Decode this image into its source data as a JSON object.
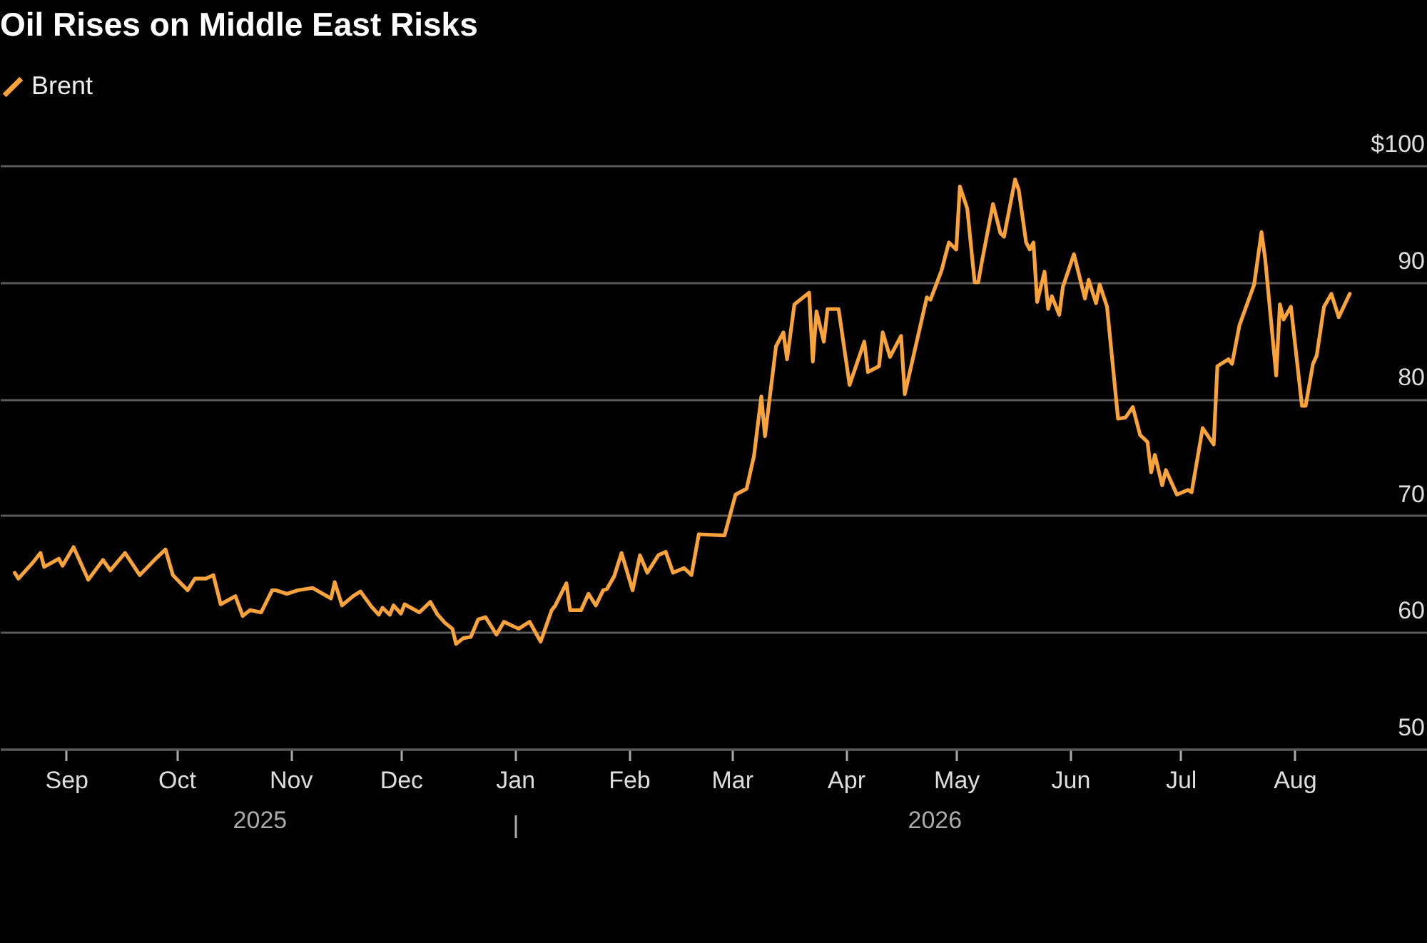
{
  "chart_data": {
    "type": "line",
    "title": "Oil Rises on Middle East Risks",
    "legend": "top left",
    "grid": "y",
    "annotations": [
      "2025",
      "2026"
    ],
    "ylim": [
      50,
      100
    ],
    "yticks": [
      {
        "value": 100,
        "label": "$100"
      },
      90,
      80,
      70,
      60,
      50
    ],
    "xlim": [
      "2025-08-14",
      "2026-09-06"
    ],
    "xticks": [
      {
        "value": "2025-09-01",
        "label": "Sep"
      },
      {
        "value": "2025-10-01",
        "label": "Oct"
      },
      {
        "value": "2025-11-01",
        "label": "Nov"
      },
      {
        "value": "2025-12-01",
        "label": "Dec"
      },
      {
        "value": "2026-01-01",
        "label": "Jan"
      },
      {
        "value": "2026-02-01",
        "label": "Feb"
      },
      {
        "value": "2026-03-01",
        "label": "Mar"
      },
      {
        "value": "2026-04-01",
        "label": "Apr"
      },
      {
        "value": "2026-05-01",
        "label": "May"
      },
      {
        "value": "2026-06-01",
        "label": "Jun"
      },
      {
        "value": "2026-07-01",
        "label": "Jul"
      },
      {
        "value": "2026-08-01",
        "label": "Aug"
      }
    ],
    "x": [
      "2025-08-18",
      "2025-08-19",
      "2025-08-23",
      "2025-08-25",
      "2025-08-26",
      "2025-08-30",
      "2025-08-31",
      "2025-09-03",
      "2025-09-07",
      "2025-09-11",
      "2025-09-13",
      "2025-09-17",
      "2025-09-21",
      "2025-09-25",
      "2025-09-28",
      "2025-09-30",
      "2025-10-04",
      "2025-10-06",
      "2025-10-09",
      "2025-10-11",
      "2025-10-13",
      "2025-10-17",
      "2025-10-19",
      "2025-10-21",
      "2025-10-24",
      "2025-10-27",
      "2025-10-28",
      "2025-10-31",
      "2025-11-03",
      "2025-11-07",
      "2025-11-12",
      "2025-11-13",
      "2025-11-15",
      "2025-11-18",
      "2025-11-20",
      "2025-11-23",
      "2025-11-25",
      "2025-11-26",
      "2025-11-28",
      "2025-11-29",
      "2025-12-01",
      "2025-12-02",
      "2025-12-06",
      "2025-12-09",
      "2025-12-11",
      "2025-12-13",
      "2025-12-15",
      "2025-12-16",
      "2025-12-18",
      "2025-12-20",
      "2025-12-22",
      "2025-12-24",
      "2025-12-27",
      "2025-12-29",
      "2026-01-02",
      "2026-01-05",
      "2026-01-08",
      "2026-01-11",
      "2026-01-12",
      "2026-01-15",
      "2026-01-16",
      "2026-01-19",
      "2026-01-21",
      "2026-01-23",
      "2026-01-25",
      "2026-01-26",
      "2026-01-28",
      "2026-01-30",
      "2026-02-02",
      "2026-02-04",
      "2026-02-06",
      "2026-02-09",
      "2026-02-11",
      "2026-02-13",
      "2026-02-16",
      "2026-02-18",
      "2026-02-20",
      "2026-02-27",
      "2026-03-02",
      "2026-03-05",
      "2026-03-07",
      "2026-03-09",
      "2026-03-10",
      "2026-03-13",
      "2026-03-15",
      "2026-03-16",
      "2026-03-18",
      "2026-03-22",
      "2026-03-23",
      "2026-03-24",
      "2026-03-26",
      "2026-03-27",
      "2026-03-30",
      "2026-04-02",
      "2026-04-06",
      "2026-04-07",
      "2026-04-10",
      "2026-04-11",
      "2026-04-13",
      "2026-04-16",
      "2026-04-17",
      "2026-04-23",
      "2026-04-24",
      "2026-04-27",
      "2026-04-29",
      "2026-05-01",
      "2026-05-02",
      "2026-05-04",
      "2026-05-06",
      "2026-05-07",
      "2026-05-08",
      "2026-05-11",
      "2026-05-13",
      "2026-05-14",
      "2026-05-17",
      "2026-05-18",
      "2026-05-20",
      "2026-05-21",
      "2026-05-22",
      "2026-05-23",
      "2026-05-25",
      "2026-05-26",
      "2026-05-27",
      "2026-05-29",
      "2026-05-30",
      "2026-06-02",
      "2026-06-05",
      "2026-06-06",
      "2026-06-08",
      "2026-06-09",
      "2026-06-11",
      "2026-06-14",
      "2026-06-16",
      "2026-06-18",
      "2026-06-20",
      "2026-06-22",
      "2026-06-23",
      "2026-06-24",
      "2026-06-26",
      "2026-06-27",
      "2026-06-30",
      "2026-07-03",
      "2026-07-04",
      "2026-07-07",
      "2026-07-10",
      "2026-07-11",
      "2026-07-14",
      "2026-07-15",
      "2026-07-17",
      "2026-07-21",
      "2026-07-23",
      "2026-07-24",
      "2026-07-27",
      "2026-07-28",
      "2026-07-29",
      "2026-07-31",
      "2026-08-03",
      "2026-08-04",
      "2026-08-06",
      "2026-08-07",
      "2026-08-09",
      "2026-08-11",
      "2026-08-13",
      "2026-08-16"
    ],
    "series": [
      {
        "name": "Brent",
        "color": "#f9a33a",
        "values": [
          65.1,
          64.6,
          66.0,
          66.8,
          65.6,
          66.3,
          65.7,
          67.3,
          64.5,
          66.2,
          65.3,
          66.8,
          64.9,
          66.2,
          67.1,
          64.9,
          63.6,
          64.6,
          64.6,
          64.9,
          62.4,
          63.1,
          61.4,
          61.9,
          61.7,
          63.6,
          63.6,
          63.3,
          63.6,
          63.8,
          62.9,
          64.3,
          62.3,
          63.1,
          63.5,
          62.2,
          61.5,
          62.1,
          61.5,
          62.3,
          61.6,
          62.4,
          61.7,
          62.6,
          61.5,
          60.8,
          60.3,
          59.0,
          59.5,
          59.6,
          61.1,
          61.3,
          59.8,
          60.9,
          60.3,
          60.9,
          59.2,
          61.9,
          62.3,
          64.2,
          61.9,
          61.9,
          63.3,
          62.3,
          63.6,
          63.7,
          64.8,
          66.8,
          63.6,
          66.6,
          65.1,
          66.6,
          66.9,
          65.1,
          65.5,
          64.9,
          68.4,
          68.3,
          71.8,
          72.3,
          75.1,
          80.2,
          76.8,
          84.5,
          85.7,
          83.4,
          88.1,
          89.1,
          83.2,
          87.5,
          84.9,
          87.7,
          87.7,
          81.2,
          84.9,
          82.3,
          82.8,
          85.7,
          83.6,
          85.4,
          80.4,
          88.7,
          88.5,
          91.0,
          93.4,
          92.8,
          98.2,
          96.3,
          90.0,
          90.0,
          91.8,
          96.7,
          94.2,
          93.9,
          98.8,
          97.9,
          93.4,
          92.8,
          93.4,
          88.3,
          90.9,
          87.7,
          88.8,
          87.2,
          89.6,
          92.4,
          88.6,
          90.2,
          88.2,
          89.8,
          87.9,
          78.3,
          78.4,
          79.3,
          76.9,
          76.3,
          73.7,
          75.2,
          72.6,
          73.9,
          71.8,
          72.2,
          72.0,
          77.5,
          76.1,
          82.8,
          83.4,
          83.0,
          86.3,
          89.8,
          94.3,
          92.0,
          82.0,
          88.1,
          86.8,
          87.9,
          79.4,
          79.4,
          83.0,
          83.7,
          87.9,
          89.0,
          87.0,
          89.0
        ]
      }
    ]
  }
}
